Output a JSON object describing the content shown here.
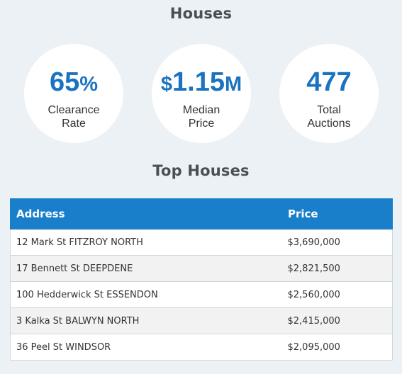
{
  "houses_title": "Houses",
  "stats": [
    {
      "value_num": "65",
      "value_unit": "%",
      "label_line1": "Clearance",
      "label_line2": "Rate"
    },
    {
      "value_prefix": "$",
      "value_num": "1.15",
      "value_unit": "M",
      "label_line1": "Median",
      "label_line2": "Price"
    },
    {
      "value_num": "477",
      "label_line1": "Total",
      "label_line2": "Auctions"
    }
  ],
  "top_houses_title": "Top Houses",
  "table": {
    "headers": [
      "Address",
      "Price"
    ],
    "rows": [
      {
        "address": "12 Mark St FITZROY NORTH",
        "price": "$3,690,000"
      },
      {
        "address": "17 Bennett St DEEPDENE",
        "price": "$2,821,500"
      },
      {
        "address": "100 Hedderwick St ESSENDON",
        "price": "$2,560,000"
      },
      {
        "address": "3 Kalka St BALWYN NORTH",
        "price": "$2,415,000"
      },
      {
        "address": "36 Peel St WINDSOR",
        "price": "$2,095,000"
      }
    ]
  },
  "colors": {
    "accent": "#1a73c0",
    "header_bg": "#1a7fcb",
    "page_bg": "#ecf1f5"
  }
}
